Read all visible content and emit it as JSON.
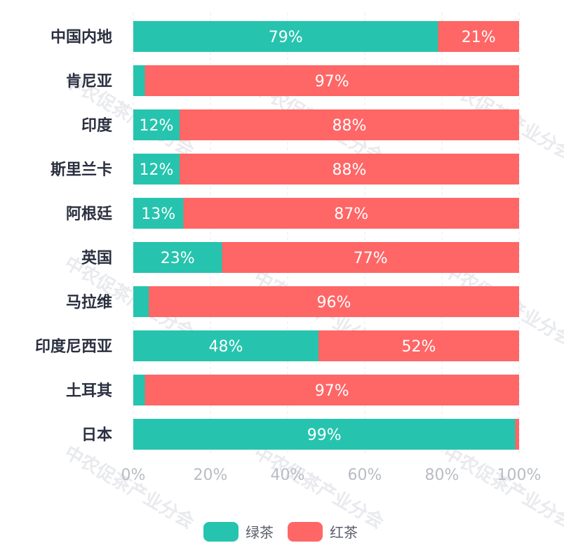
{
  "watermark_text": "中农促茶产业分会",
  "chart_data": {
    "type": "bar",
    "orientation": "horizontal",
    "stacked": true,
    "categories": [
      "中国内地",
      "肯尼亚",
      "印度",
      "斯里兰卡",
      "阿根廷",
      "英国",
      "马拉维",
      "印度尼西亚",
      "土耳其",
      "日本"
    ],
    "series": [
      {
        "name": "绿茶",
        "color": "#26c4ae",
        "values": [
          79,
          3,
          12,
          12,
          13,
          23,
          4,
          48,
          3,
          99
        ]
      },
      {
        "name": "红茶",
        "color": "#ff6666",
        "values": [
          21,
          97,
          88,
          88,
          87,
          77,
          96,
          52,
          97,
          1
        ]
      }
    ],
    "xlim": [
      0,
      100
    ],
    "xticks": [
      "0%",
      "20%",
      "40%",
      "60%",
      "80%",
      "100%"
    ],
    "grid": true,
    "legend_position": "bottom"
  }
}
